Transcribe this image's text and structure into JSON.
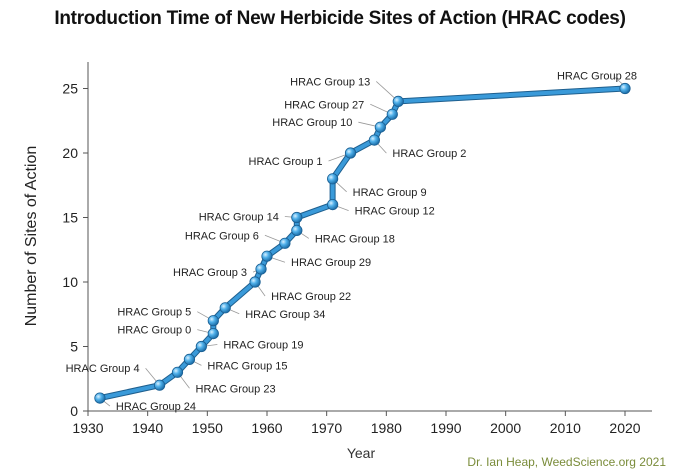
{
  "chart_data": {
    "type": "line",
    "title": "Introduction Time of New Herbicide Sites of Action (HRAC codes)",
    "xlabel": "Year",
    "ylabel": "Number of Sites of Action",
    "xlim": [
      1930,
      2025
    ],
    "ylim": [
      0,
      27
    ],
    "xticks": [
      1930,
      1940,
      1950,
      1960,
      1970,
      1980,
      1990,
      2000,
      2010,
      2020
    ],
    "yticks": [
      0,
      5,
      10,
      15,
      20,
      25
    ],
    "grid": false,
    "line_color": "#3a9ad9",
    "points": [
      {
        "x": 1932,
        "y": 1,
        "label": "HRAC Group 24"
      },
      {
        "x": 1942,
        "y": 2,
        "label": "HRAC Group 4"
      },
      {
        "x": 1945,
        "y": 3,
        "label": "HRAC Group 23"
      },
      {
        "x": 1947,
        "y": 4,
        "label": "HRAC Group 15"
      },
      {
        "x": 1949,
        "y": 5,
        "label": "HRAC Group 19"
      },
      {
        "x": 1951,
        "y": 6,
        "label": "HRAC Group 0"
      },
      {
        "x": 1951,
        "y": 7,
        "label": "HRAC Group 5"
      },
      {
        "x": 1953,
        "y": 8,
        "label": "HRAC Group 34"
      },
      {
        "x": 1958,
        "y": 10,
        "label": "HRAC Group 22"
      },
      {
        "x": 1959,
        "y": 11,
        "label": "HRAC Group 3"
      },
      {
        "x": 1960,
        "y": 12,
        "label": "HRAC Group 29"
      },
      {
        "x": 1963,
        "y": 13,
        "label": "HRAC Group 6"
      },
      {
        "x": 1965,
        "y": 14,
        "label": "HRAC Group 18"
      },
      {
        "x": 1965,
        "y": 15,
        "label": "HRAC Group 14"
      },
      {
        "x": 1971,
        "y": 16,
        "label": "HRAC Group 12"
      },
      {
        "x": 1971,
        "y": 18,
        "label": "HRAC Group 9"
      },
      {
        "x": 1974,
        "y": 20,
        "label": "HRAC Group 1"
      },
      {
        "x": 1978,
        "y": 21,
        "label": "HRAC Group 2"
      },
      {
        "x": 1979,
        "y": 22,
        "label": "HRAC Group 10"
      },
      {
        "x": 1981,
        "y": 23,
        "label": "HRAC Group 27"
      },
      {
        "x": 1982,
        "y": 24,
        "label": "HRAC Group 13"
      },
      {
        "x": 2020,
        "y": 25,
        "label": "HRAC Group 28"
      }
    ]
  },
  "credit": "Dr. Ian Heap, WeedScience.org 2021"
}
